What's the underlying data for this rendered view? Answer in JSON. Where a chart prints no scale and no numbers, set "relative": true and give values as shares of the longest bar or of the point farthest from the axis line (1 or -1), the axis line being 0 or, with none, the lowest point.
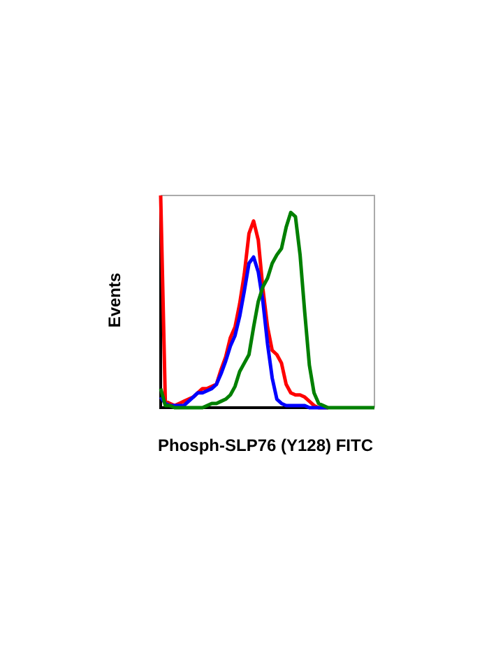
{
  "chart_data": {
    "type": "line",
    "relative": true,
    "xlabel": "Phosph-SLP76 (Y128) FITC",
    "ylabel": "Events",
    "legend": false,
    "marker": "none",
    "categories": [
      null,
      null,
      null,
      null,
      null,
      null,
      null,
      null,
      null,
      null,
      null,
      null,
      null,
      null,
      null,
      null,
      null,
      null,
      null,
      null,
      null,
      null,
      null,
      null,
      null,
      null,
      null,
      null,
      null,
      null,
      null,
      null,
      null,
      null,
      null,
      null,
      null,
      null,
      null,
      null,
      null,
      null,
      null,
      null,
      null,
      null,
      null
    ],
    "series": [
      {
        "color": "#008000",
        "values": [
          0.09,
          0.01,
          0.01,
          0,
          0,
          0,
          0,
          0,
          0,
          0,
          0.01,
          0.02,
          0.02,
          0.03,
          0.04,
          0.06,
          0.1,
          0.17,
          0.21,
          0.25,
          0.38,
          0.5,
          0.57,
          0.61,
          0.68,
          0.72,
          0.75,
          0.85,
          0.92,
          0.9,
          0.72,
          0.45,
          0.2,
          0.07,
          0.02,
          0.01,
          0,
          0,
          0,
          0,
          0,
          0,
          0,
          0,
          0,
          0,
          0
        ]
      },
      {
        "color": "#0000ff",
        "values": [
          0.05,
          0.02,
          0.01,
          0.01,
          0.01,
          0.01,
          0.03,
          0.05,
          0.07,
          0.07,
          0.08,
          0.09,
          0.11,
          0.16,
          0.22,
          0.29,
          0.34,
          0.43,
          0.55,
          0.68,
          0.71,
          0.64,
          0.5,
          0.3,
          0.14,
          0.04,
          0.02,
          0.01,
          0.01,
          0.01,
          0.01,
          0.01,
          0,
          0,
          0,
          0,
          0,
          null,
          null,
          null,
          null,
          null,
          null,
          null,
          null,
          null,
          null
        ]
      },
      {
        "color": "#ff0000",
        "values": [
          1,
          0.03,
          0.02,
          0.01,
          0.02,
          0.03,
          0.04,
          0.05,
          0.07,
          0.09,
          0.09,
          0.1,
          0.11,
          0.18,
          0.24,
          0.33,
          0.38,
          0.49,
          0.63,
          0.82,
          0.88,
          0.79,
          0.56,
          0.38,
          0.27,
          0.25,
          0.21,
          0.11,
          0.07,
          0.06,
          0.06,
          0.05,
          0.03,
          0.01,
          0,
          0,
          0,
          null,
          null,
          null,
          null,
          null,
          null,
          null,
          null,
          null,
          null
        ]
      }
    ]
  }
}
